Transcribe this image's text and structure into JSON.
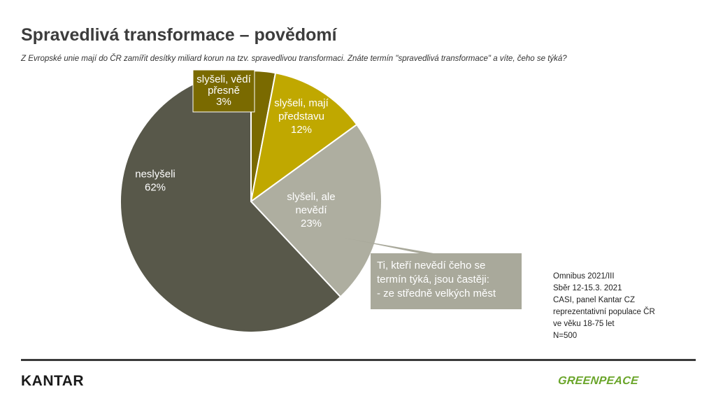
{
  "header": {
    "title": "Spravedlivá transformace – povědomí",
    "subtitle": "Z Evropské unie mají do ČR zamířit desítky miliard korun na tzv. spravedlivou transformaci. Znáte termín \"spravedlivá transformace\" a víte, čeho se týká?"
  },
  "chart_data": {
    "type": "pie",
    "slices": [
      {
        "label_lines": [
          "slyšeli, vědí",
          "přesně",
          "3%"
        ],
        "value": 3,
        "color": "#7a6a00"
      },
      {
        "label_lines": [
          "slyšeli, mají",
          "představu",
          "12%"
        ],
        "value": 12,
        "color": "#c0a800"
      },
      {
        "label_lines": [
          "slyšeli, ale",
          "nevědí",
          "23%"
        ],
        "value": 23,
        "color": "#aeaea0"
      },
      {
        "label_lines": [
          "neslyšeli",
          "62%"
        ],
        "value": 62,
        "color": "#58584a"
      }
    ],
    "callout": {
      "lines": [
        "Ti, kteří nevědí čeho se",
        "termín týká, jsou častěji:",
        "- ze středně velkých měst"
      ],
      "color": "#a9a99b"
    }
  },
  "notes": {
    "lines": [
      "Omnibus 2021/III",
      "Sběr 12-15.3. 2021",
      "CASI,  panel Kantar CZ",
      "reprezentativní populace ČR",
      "ve věku 18-75 let",
      "",
      "N=500"
    ]
  },
  "footer": {
    "left_logo": "KANTAR",
    "right_logo": "GREENPEACE"
  }
}
